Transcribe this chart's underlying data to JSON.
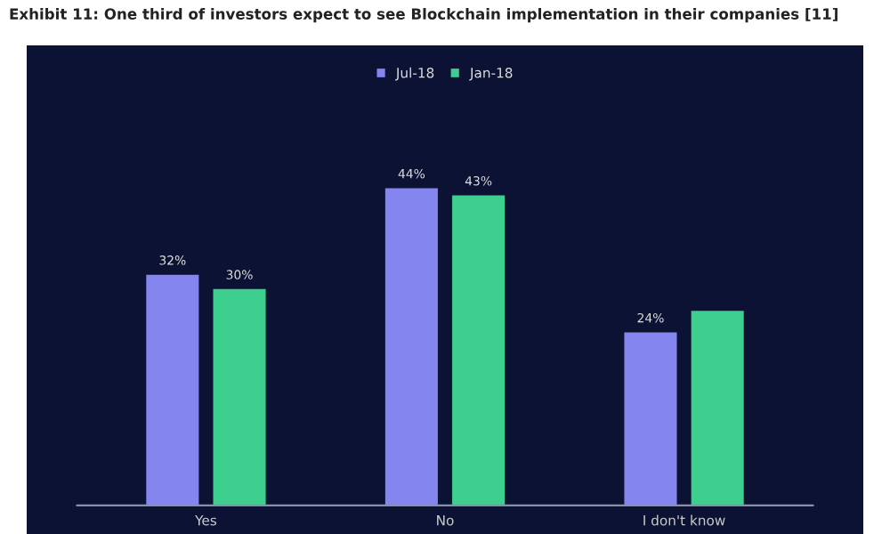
{
  "chart_data": {
    "type": "bar",
    "title": "Exhibit 11: One third of investors expect to see Blockchain implementation in their companies [11]",
    "categories": [
      "Yes",
      "No",
      "I don't know"
    ],
    "series": [
      {
        "name": "Jul-18",
        "color": "#8585ef",
        "values": [
          32,
          44,
          24
        ],
        "value_labels": [
          "32%",
          "44%",
          "24%"
        ]
      },
      {
        "name": "Jan-18",
        "color": "#3ccf8e",
        "values": [
          30,
          43,
          27
        ],
        "value_labels": [
          "30%",
          "43%",
          null
        ]
      }
    ],
    "legend": "top"
  }
}
